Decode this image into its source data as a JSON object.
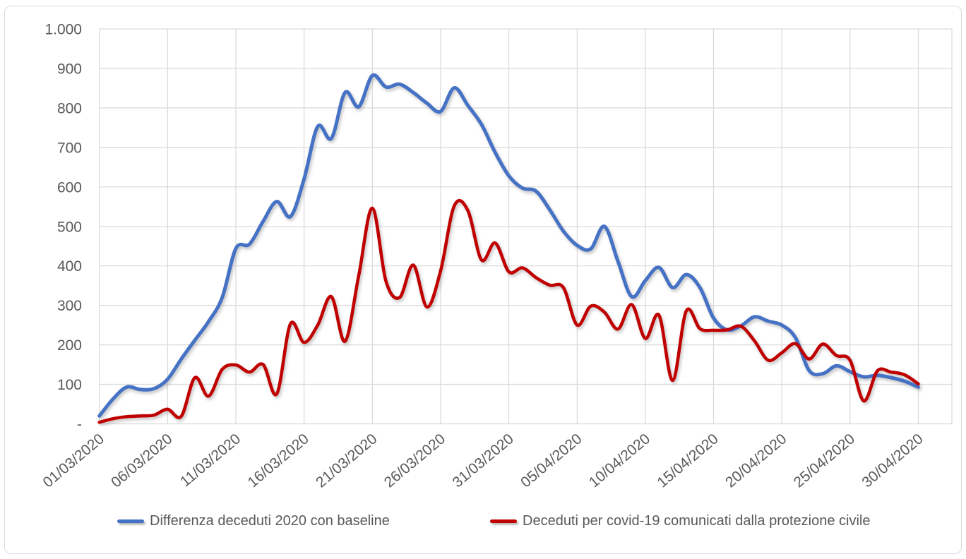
{
  "chart_data": {
    "type": "line",
    "title": "",
    "xlabel": "",
    "ylabel": "",
    "ylim": [
      0,
      1000
    ],
    "grid": true,
    "legend_position": "bottom",
    "smooth_lines": true,
    "y_ticks": [
      {
        "value": 1000,
        "label": "1.000"
      },
      {
        "value": 900,
        "label": "900"
      },
      {
        "value": 800,
        "label": "800"
      },
      {
        "value": 700,
        "label": "700"
      },
      {
        "value": 600,
        "label": "600"
      },
      {
        "value": 500,
        "label": "500"
      },
      {
        "value": 400,
        "label": "400"
      },
      {
        "value": 300,
        "label": "300"
      },
      {
        "value": 200,
        "label": "200"
      },
      {
        "value": 100,
        "label": "100"
      },
      {
        "value": 0,
        "label": "-"
      }
    ],
    "x_ticks": [
      {
        "day": 0,
        "label": "01/03/2020"
      },
      {
        "day": 5,
        "label": "06/03/2020"
      },
      {
        "day": 10,
        "label": "11/03/2020"
      },
      {
        "day": 15,
        "label": "16/03/2020"
      },
      {
        "day": 20,
        "label": "21/03/2020"
      },
      {
        "day": 25,
        "label": "26/03/2020"
      },
      {
        "day": 30,
        "label": "31/03/2020"
      },
      {
        "day": 35,
        "label": "05/04/2020"
      },
      {
        "day": 40,
        "label": "10/04/2020"
      },
      {
        "day": 45,
        "label": "15/04/2020"
      },
      {
        "day": 50,
        "label": "20/04/2020"
      },
      {
        "day": 55,
        "label": "25/04/2020"
      },
      {
        "day": 60,
        "label": "30/04/2020"
      }
    ],
    "x_dates": [
      "01/03/2020",
      "02/03/2020",
      "03/03/2020",
      "04/03/2020",
      "05/03/2020",
      "06/03/2020",
      "07/03/2020",
      "08/03/2020",
      "09/03/2020",
      "10/03/2020",
      "11/03/2020",
      "12/03/2020",
      "13/03/2020",
      "14/03/2020",
      "15/03/2020",
      "16/03/2020",
      "17/03/2020",
      "18/03/2020",
      "19/03/2020",
      "20/03/2020",
      "21/03/2020",
      "22/03/2020",
      "23/03/2020",
      "24/03/2020",
      "25/03/2020",
      "26/03/2020",
      "27/03/2020",
      "28/03/2020",
      "29/03/2020",
      "30/03/2020",
      "31/03/2020",
      "01/04/2020",
      "02/04/2020",
      "03/04/2020",
      "04/04/2020",
      "05/04/2020",
      "06/04/2020",
      "07/04/2020",
      "08/04/2020",
      "09/04/2020",
      "10/04/2020",
      "11/04/2020",
      "12/04/2020",
      "13/04/2020",
      "14/04/2020",
      "15/04/2020",
      "16/04/2020",
      "17/04/2020",
      "18/04/2020",
      "19/04/2020",
      "20/04/2020",
      "21/04/2020",
      "22/04/2020",
      "23/04/2020",
      "24/04/2020",
      "25/04/2020",
      "26/04/2020",
      "27/04/2020",
      "28/04/2020",
      "29/04/2020",
      "30/04/2020"
    ],
    "series": [
      {
        "name": "Differenza deceduti 2020 con baseline",
        "color": "#4472C4",
        "values": [
          20,
          63,
          93,
          87,
          89,
          113,
          164,
          212,
          259,
          320,
          444,
          455,
          513,
          563,
          525,
          620,
          753,
          723,
          839,
          803,
          882,
          853,
          860,
          839,
          812,
          791,
          851,
          806,
          758,
          687,
          628,
          597,
          589,
          542,
          488,
          452,
          443,
          500,
          411,
          322,
          363,
          396,
          345,
          378,
          345,
          268,
          238,
          248,
          271,
          260,
          250,
          218,
          135,
          127,
          147,
          132,
          119,
          123,
          117,
          108,
          93
        ]
      },
      {
        "name": "Deceduti per covid-19 comunicati dalla protezione civile",
        "color": "#C00000",
        "values": [
          4,
          13,
          18,
          20,
          22,
          37,
          19,
          117,
          70,
          138,
          149,
          131,
          150,
          76,
          253,
          206,
          250,
          322,
          209,
          375,
          546,
          361,
          320,
          402,
          296,
          387,
          552,
          540,
          415,
          458,
          385,
          395,
          370,
          351,
          345,
          250,
          298,
          283,
          240,
          302,
          216,
          275,
          110,
          286,
          241,
          237,
          238,
          247,
          210,
          161,
          180,
          203,
          164,
          202,
          173,
          161,
          58,
          134,
          131,
          124,
          101
        ]
      }
    ],
    "colors": {
      "grid": "#D9D9D9",
      "axis_labels": "#595959",
      "frame_border": "#D9D9D9",
      "background": "#FFFFFF"
    }
  }
}
